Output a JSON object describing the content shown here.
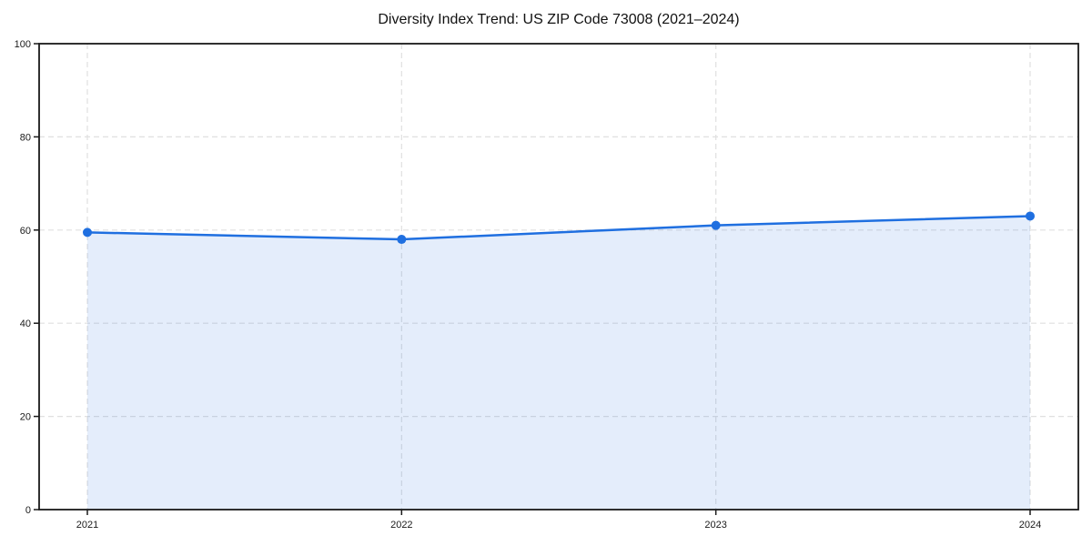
{
  "figure": {
    "title": "Diversity Index Trend: US ZIP Code 73008 (2021–2024)"
  },
  "chart_data": {
    "type": "area",
    "title": "Diversity Index Trend: US ZIP Code 73008 (2021–2024)",
    "categories": [
      "2021",
      "2022",
      "2023",
      "2024"
    ],
    "series": [
      {
        "name": "Diversity Index",
        "values": [
          59.5,
          58,
          61,
          63
        ]
      }
    ],
    "xlabel": "",
    "ylabel": "",
    "ylim": [
      0,
      100
    ],
    "y_ticks": [
      0,
      20,
      40,
      60,
      80,
      100
    ],
    "grid": true,
    "grid_style": "dashed",
    "legend_position": "none",
    "markers": true,
    "colors": {
      "line": "#1f6fe0",
      "fill": "#1f6fe0",
      "fill_opacity": 0.12,
      "grid": "#e0e0e0",
      "axis": "#1a1a1a",
      "tick_label": "#1a1a1a",
      "background": "#ffffff"
    }
  }
}
